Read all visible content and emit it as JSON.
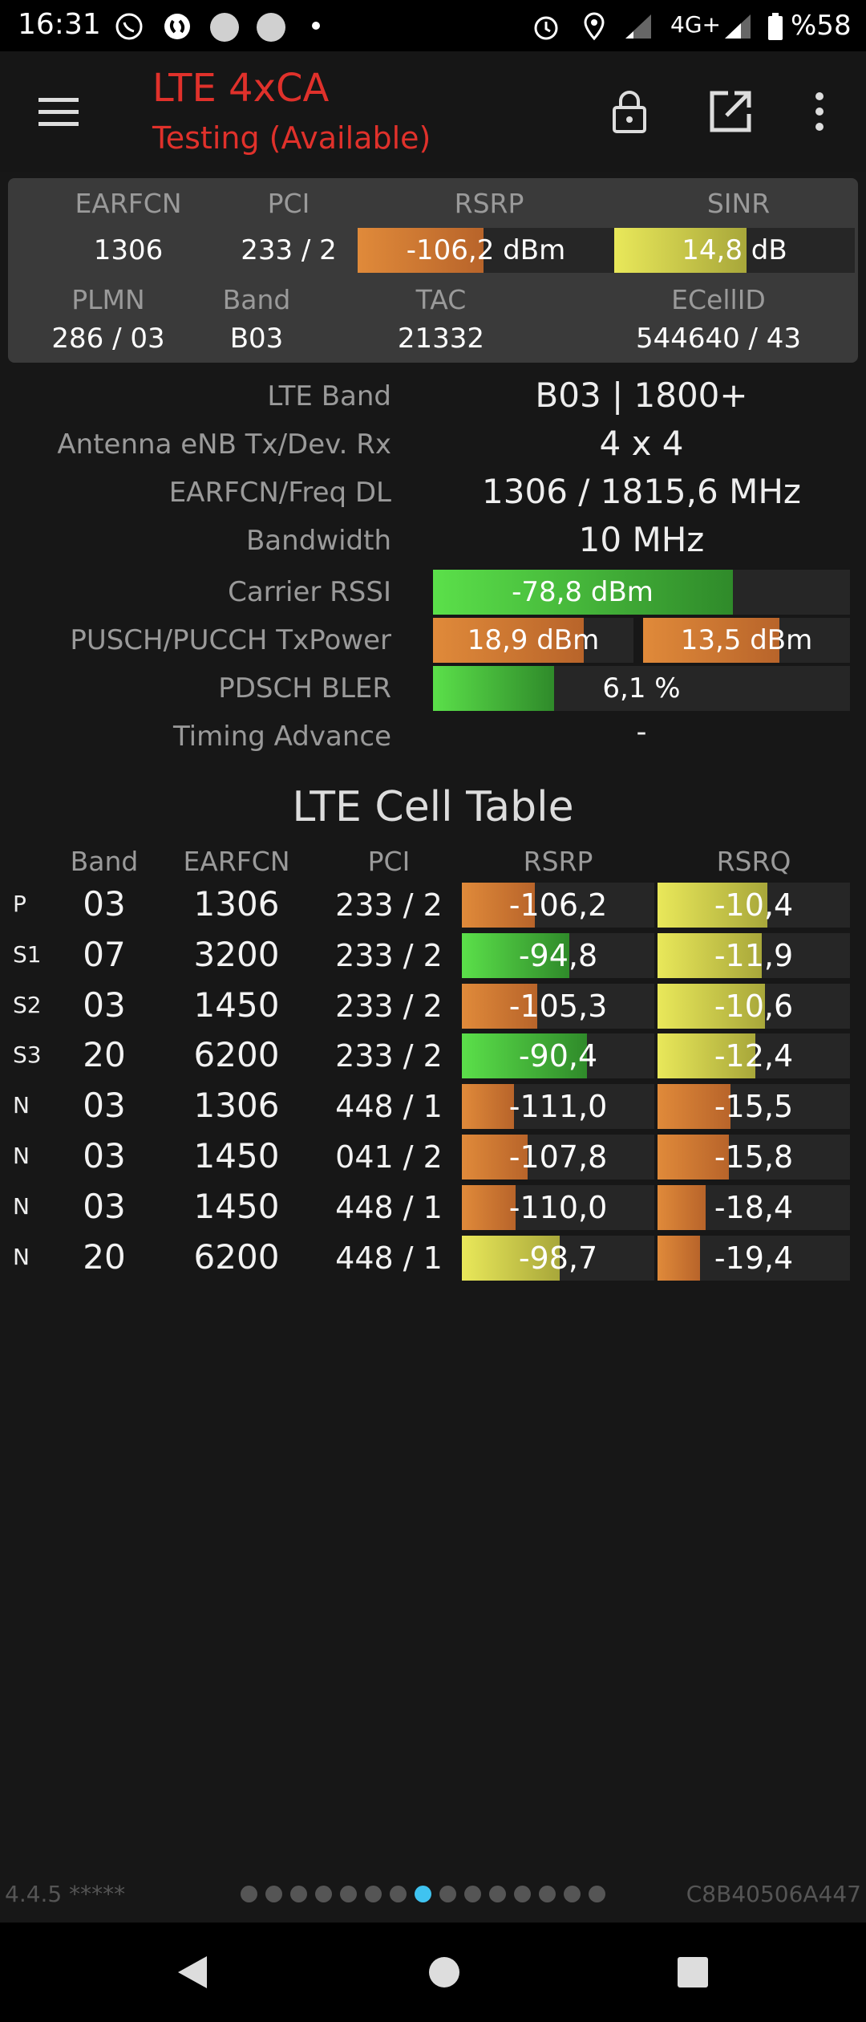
{
  "status_bar": {
    "time": "16:31",
    "network": "4G+",
    "battery": "%58",
    "icons": [
      "whatsapp-icon",
      "shazam-icon",
      "circle-icon",
      "circle-icon",
      "dot-icon",
      "alarm-icon",
      "location-icon",
      "signal-icon",
      "signal-icon",
      "battery-icon"
    ]
  },
  "app_bar": {
    "title": "LTE 4xCA",
    "subtitle": "Testing (Available)",
    "title_color": "#e0312b",
    "icons": [
      "menu-icon",
      "lock-icon",
      "open-external-icon",
      "more-vert-icon"
    ]
  },
  "summary": {
    "earfcn_label": "EARFCN",
    "earfcn": "1306",
    "pci_label": "PCI",
    "pci": "233 / 2",
    "rsrp_label": "RSRP",
    "rsrp": "-106,2 dBm",
    "rsrp_level": 0.49,
    "sinr_label": "SINR",
    "sinr": "14,8 dB",
    "sinr_level": 0.55,
    "plmn_label": "PLMN",
    "plmn": "286 / 03",
    "band_label": "Band",
    "band": "B03",
    "tac_label": "TAC",
    "tac": "21332",
    "ecellid_label": "ECellID",
    "ecellid": "544640 / 43"
  },
  "details": {
    "lte_band_label": "LTE Band",
    "lte_band": "B03 | 1800+",
    "antenna_label": "Antenna eNB Tx/Dev. Rx",
    "antenna": "4 x 4",
    "earfcn_freq_label": "EARFCN/Freq DL",
    "earfcn_freq": "1306 / 1815,6 MHz",
    "bandwidth_label": "Bandwidth",
    "bandwidth": "10 MHz",
    "carrier_rssi_label": "Carrier RSSI",
    "carrier_rssi": "-78,8 dBm",
    "carrier_rssi_level": 0.72,
    "txpower_label": "PUSCH/PUCCH TxPower",
    "pusch": "18,9 dBm",
    "pusch_level": 0.75,
    "pucch": "13,5 dBm",
    "pucch_level": 0.66,
    "bler_label": "PDSCH BLER",
    "bler": "6,1 %",
    "bler_level": 0.29,
    "timing_label": "Timing Advance",
    "timing": "-"
  },
  "cell_table": {
    "title": "LTE Cell Table",
    "headers": [
      "Band",
      "EARFCN",
      "PCI",
      "RSRP",
      "RSRQ"
    ],
    "rows": [
      {
        "type": "P",
        "band": "03",
        "earfcn": "1306",
        "pci": "233 / 2",
        "rsrp": "-106,2",
        "rsrp_level": 0.38,
        "rsrp_color": "orange",
        "rsrq": "-10,4",
        "rsrq_level": 0.57,
        "rsrq_color": "yellow"
      },
      {
        "type": "S1",
        "band": "07",
        "earfcn": "3200",
        "pci": "233 / 2",
        "rsrp": "-94,8",
        "rsrp_level": 0.56,
        "rsrp_color": "green",
        "rsrq": "-11,9",
        "rsrq_level": 0.54,
        "rsrq_color": "yellow"
      },
      {
        "type": "S2",
        "band": "03",
        "earfcn": "1450",
        "pci": "233 / 2",
        "rsrp": "-105,3",
        "rsrp_level": 0.39,
        "rsrp_color": "orange",
        "rsrq": "-10,6",
        "rsrq_level": 0.56,
        "rsrq_color": "yellow"
      },
      {
        "type": "S3",
        "band": "20",
        "earfcn": "6200",
        "pci": "233 / 2",
        "rsrp": "-90,4",
        "rsrp_level": 0.65,
        "rsrp_color": "green",
        "rsrq": "-12,4",
        "rsrq_level": 0.51,
        "rsrq_color": "yellow"
      },
      {
        "type": "N",
        "band": "03",
        "earfcn": "1306",
        "pci": "448 / 1",
        "rsrp": "-111,0",
        "rsrp_level": 0.27,
        "rsrp_color": "orange",
        "rsrq": "-15,5",
        "rsrq_level": 0.38,
        "rsrq_color": "orange"
      },
      {
        "type": "N",
        "band": "03",
        "earfcn": "1450",
        "pci": "041 / 2",
        "rsrp": "-107,8",
        "rsrp_level": 0.34,
        "rsrp_color": "orange",
        "rsrq": "-15,8",
        "rsrq_level": 0.37,
        "rsrq_color": "orange"
      },
      {
        "type": "N",
        "band": "03",
        "earfcn": "1450",
        "pci": "448 / 1",
        "rsrp": "-110,0",
        "rsrp_level": 0.28,
        "rsrp_color": "orange",
        "rsrq": "-18,4",
        "rsrq_level": 0.25,
        "rsrq_color": "orange"
      },
      {
        "type": "N",
        "band": "20",
        "earfcn": "6200",
        "pci": "448 / 1",
        "rsrp": "-98,7",
        "rsrp_level": 0.51,
        "rsrp_color": "yellow",
        "rsrq": "-19,4",
        "rsrq_level": 0.22,
        "rsrq_color": "orange"
      }
    ]
  },
  "footer": {
    "version": "4.4.5 *****",
    "device_id": "C8B40506A447",
    "page_count": 15,
    "active_page": 8
  },
  "nav_bar": {
    "icons": [
      "back-icon",
      "home-icon",
      "recents-icon"
    ]
  }
}
